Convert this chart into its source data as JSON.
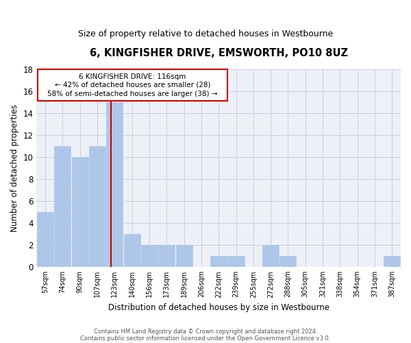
{
  "title": "6, KINGFISHER DRIVE, EMSWORTH, PO10 8UZ",
  "subtitle": "Size of property relative to detached houses in Westbourne",
  "xlabel": "Distribution of detached houses by size in Westbourne",
  "ylabel": "Number of detached properties",
  "categories": [
    "57sqm",
    "74sqm",
    "90sqm",
    "107sqm",
    "123sqm",
    "140sqm",
    "156sqm",
    "173sqm",
    "189sqm",
    "206sqm",
    "222sqm",
    "239sqm",
    "255sqm",
    "272sqm",
    "288sqm",
    "305sqm",
    "321sqm",
    "338sqm",
    "354sqm",
    "371sqm",
    "387sqm"
  ],
  "values": [
    5,
    11,
    10,
    11,
    15,
    3,
    2,
    2,
    2,
    0,
    1,
    1,
    0,
    2,
    1,
    0,
    0,
    0,
    0,
    0,
    1
  ],
  "bar_color": "#aec6e8",
  "bar_edge_color": "#aec6e8",
  "grid_color": "#c8d0e0",
  "background_color": "#eef0f8",
  "annotation_box_color": "#ffffff",
  "annotation_box_edge": "#cc0000",
  "annotation_text_line1": "6 KINGFISHER DRIVE: 116sqm",
  "annotation_text_line2": "← 42% of detached houses are smaller (28)",
  "annotation_text_line3": "58% of semi-detached houses are larger (38) →",
  "redline_x": 3.77,
  "ylim": [
    0,
    18
  ],
  "yticks": [
    0,
    2,
    4,
    6,
    8,
    10,
    12,
    14,
    16,
    18
  ],
  "footer_line1": "Contains HM Land Registry data © Crown copyright and database right 2024.",
  "footer_line2": "Contains public sector information licensed under the Open Government Licence v3.0."
}
